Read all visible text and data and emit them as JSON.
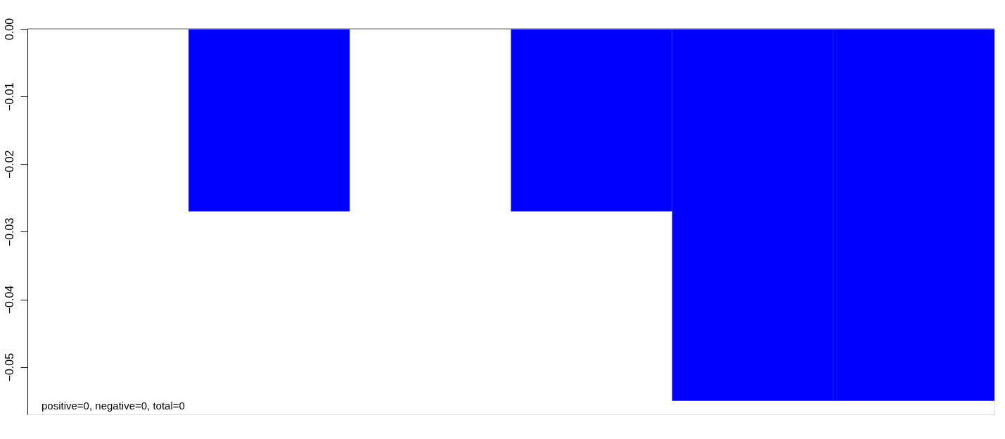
{
  "chart_data": {
    "type": "bar",
    "categories": [
      null,
      null,
      null,
      null,
      null,
      null
    ],
    "values": [
      0,
      -0.027,
      0,
      -0.027,
      -0.055,
      -0.055
    ],
    "color": "#0000ff",
    "ylim": [
      -0.057,
      0
    ],
    "yticks": [
      {
        "value": 0,
        "label": "0.00"
      },
      -0.01,
      -0.02,
      -0.03,
      -0.04,
      -0.05
    ],
    "ref_lines": [
      {
        "axis": "y",
        "value": 0,
        "color": "#999999"
      }
    ],
    "annotations": [
      "positive=0, negative=0, total=0"
    ],
    "grid": false
  }
}
